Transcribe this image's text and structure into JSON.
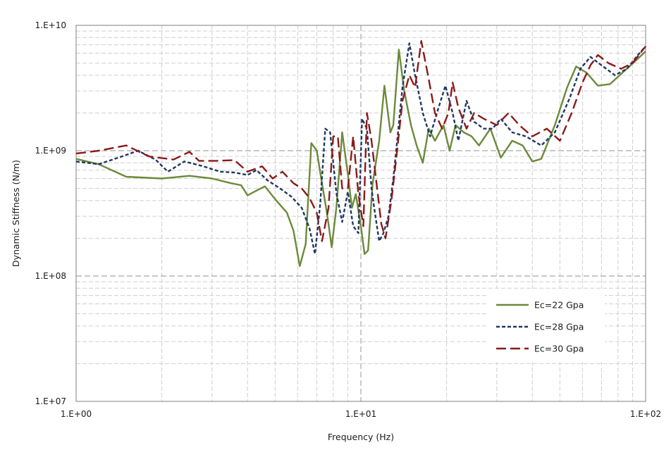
{
  "chart_data": {
    "type": "line",
    "xlabel": "Frequency (Hz)",
    "ylabel": "Dynamic Stiffness (N/m)",
    "x_scale": "log",
    "y_scale": "log",
    "xlim": [
      1,
      100
    ],
    "ylim": [
      10000000,
      10000000000
    ],
    "x_ticks": [
      {
        "value": 1,
        "label": "1.E+00"
      },
      {
        "value": 10,
        "label": "1.E+01"
      },
      {
        "value": 100,
        "label": "1.E+02"
      }
    ],
    "y_ticks": [
      {
        "value": 10000000,
        "label": "1.E+07"
      },
      {
        "value": 100000000,
        "label": "1.E+08"
      },
      {
        "value": 1000000000,
        "label": "1.E+09"
      },
      {
        "value": 10000000000,
        "label": "1.E+10"
      }
    ],
    "grid": true,
    "legend_position": "bottom-right",
    "series": [
      {
        "name": "Ec=22 Gpa",
        "color": "#6b8a3a",
        "dash": "solid",
        "points": [
          [
            1.0,
            860000000.0
          ],
          [
            1.2,
            780000000.0
          ],
          [
            1.5,
            620000000.0
          ],
          [
            2.0,
            600000000.0
          ],
          [
            2.5,
            630000000.0
          ],
          [
            3.0,
            600000000.0
          ],
          [
            3.5,
            550000000.0
          ],
          [
            3.8,
            530000000.0
          ],
          [
            4.0,
            440000000.0
          ],
          [
            4.3,
            480000000.0
          ],
          [
            4.6,
            520000000.0
          ],
          [
            5.0,
            410000000.0
          ],
          [
            5.5,
            320000000.0
          ],
          [
            5.8,
            230000000.0
          ],
          [
            6.1,
            120000000.0
          ],
          [
            6.4,
            180000000.0
          ],
          [
            6.7,
            1150000000.0
          ],
          [
            7.0,
            1000000000.0
          ],
          [
            7.3,
            550000000.0
          ],
          [
            7.6,
            320000000.0
          ],
          [
            7.9,
            170000000.0
          ],
          [
            8.2,
            350000000.0
          ],
          [
            8.6,
            1400000000.0
          ],
          [
            9.0,
            650000000.0
          ],
          [
            9.3,
            350000000.0
          ],
          [
            9.6,
            450000000.0
          ],
          [
            10.0,
            250000000.0
          ],
          [
            10.3,
            150000000.0
          ],
          [
            10.6,
            160000000.0
          ],
          [
            11.0,
            550000000.0
          ],
          [
            11.6,
            1200000000.0
          ],
          [
            12.1,
            3300000000.0
          ],
          [
            12.7,
            1400000000.0
          ],
          [
            13.0,
            1600000000.0
          ],
          [
            13.6,
            6400000000.0
          ],
          [
            14.2,
            3000000000.0
          ],
          [
            15.0,
            1600000000.0
          ],
          [
            15.7,
            1100000000.0
          ],
          [
            16.5,
            800000000.0
          ],
          [
            17.3,
            1500000000.0
          ],
          [
            18.2,
            1200000000.0
          ],
          [
            19.5,
            1600000000.0
          ],
          [
            20.5,
            1000000000.0
          ],
          [
            21.5,
            1600000000.0
          ],
          [
            23.0,
            1400000000.0
          ],
          [
            24.5,
            1300000000.0
          ],
          [
            26.0,
            1100000000.0
          ],
          [
            28.5,
            1500000000.0
          ],
          [
            31.0,
            880000000.0
          ],
          [
            34.0,
            1200000000.0
          ],
          [
            37.0,
            1100000000.0
          ],
          [
            40.0,
            820000000.0
          ],
          [
            43.0,
            860000000.0
          ],
          [
            48.0,
            1600000000.0
          ],
          [
            53.0,
            3200000000.0
          ],
          [
            57.0,
            4700000000.0
          ],
          [
            62.0,
            4200000000.0
          ],
          [
            68.0,
            3300000000.0
          ],
          [
            75.0,
            3400000000.0
          ],
          [
            83.0,
            4200000000.0
          ],
          [
            92.0,
            5200000000.0
          ],
          [
            100.0,
            6200000000.0
          ]
        ]
      },
      {
        "name": "Ec=28 Gpa",
        "color": "#1f3864",
        "dash": "dotted",
        "points": [
          [
            1.0,
            820000000.0
          ],
          [
            1.2,
            780000000.0
          ],
          [
            1.45,
            900000000.0
          ],
          [
            1.65,
            1000000000.0
          ],
          [
            1.9,
            850000000.0
          ],
          [
            2.1,
            680000000.0
          ],
          [
            2.4,
            820000000.0
          ],
          [
            2.8,
            750000000.0
          ],
          [
            3.2,
            680000000.0
          ],
          [
            3.6,
            670000000.0
          ],
          [
            4.0,
            640000000.0
          ],
          [
            4.3,
            700000000.0
          ],
          [
            4.7,
            580000000.0
          ],
          [
            5.2,
            500000000.0
          ],
          [
            5.7,
            430000000.0
          ],
          [
            6.2,
            350000000.0
          ],
          [
            6.6,
            240000000.0
          ],
          [
            6.9,
            150000000.0
          ],
          [
            7.2,
            380000000.0
          ],
          [
            7.5,
            1500000000.0
          ],
          [
            7.8,
            1400000000.0
          ],
          [
            8.2,
            460000000.0
          ],
          [
            8.6,
            270000000.0
          ],
          [
            9.0,
            470000000.0
          ],
          [
            9.4,
            250000000.0
          ],
          [
            9.8,
            220000000.0
          ],
          [
            10.1,
            1800000000.0
          ],
          [
            10.5,
            1500000000.0
          ],
          [
            10.9,
            500000000.0
          ],
          [
            11.2,
            320000000.0
          ],
          [
            11.6,
            190000000.0
          ],
          [
            12.0,
            220000000.0
          ],
          [
            12.5,
            300000000.0
          ],
          [
            13.0,
            600000000.0
          ],
          [
            13.5,
            1400000000.0
          ],
          [
            14.0,
            3200000000.0
          ],
          [
            14.8,
            7200000000.0
          ],
          [
            15.5,
            4000000000.0
          ],
          [
            16.5,
            2000000000.0
          ],
          [
            17.5,
            1300000000.0
          ],
          [
            18.5,
            2000000000.0
          ],
          [
            19.8,
            3300000000.0
          ],
          [
            21.0,
            2000000000.0
          ],
          [
            22.0,
            1200000000.0
          ],
          [
            23.5,
            2500000000.0
          ],
          [
            25.0,
            1700000000.0
          ],
          [
            27.0,
            1500000000.0
          ],
          [
            29.0,
            1500000000.0
          ],
          [
            31.0,
            1800000000.0
          ],
          [
            34.0,
            1400000000.0
          ],
          [
            38.0,
            1300000000.0
          ],
          [
            43.0,
            1100000000.0
          ],
          [
            48.0,
            1400000000.0
          ],
          [
            54.0,
            2600000000.0
          ],
          [
            59.0,
            4500000000.0
          ],
          [
            64.0,
            5600000000.0
          ],
          [
            70.0,
            4800000000.0
          ],
          [
            78.0,
            4000000000.0
          ],
          [
            86.0,
            4500000000.0
          ],
          [
            94.0,
            5800000000.0
          ],
          [
            100.0,
            6800000000.0
          ]
        ]
      },
      {
        "name": "Ec=30 Gpa",
        "color": "#8b1a1a",
        "dash": "dashed",
        "points": [
          [
            1.0,
            950000000.0
          ],
          [
            1.2,
            1000000000.0
          ],
          [
            1.5,
            1100000000.0
          ],
          [
            1.8,
            900000000.0
          ],
          [
            2.2,
            850000000.0
          ],
          [
            2.5,
            980000000.0
          ],
          [
            2.7,
            830000000.0
          ],
          [
            3.1,
            830000000.0
          ],
          [
            3.6,
            840000000.0
          ],
          [
            4.0,
            680000000.0
          ],
          [
            4.5,
            750000000.0
          ],
          [
            4.9,
            600000000.0
          ],
          [
            5.3,
            680000000.0
          ],
          [
            5.8,
            550000000.0
          ],
          [
            6.2,
            500000000.0
          ],
          [
            6.6,
            420000000.0
          ],
          [
            7.0,
            320000000.0
          ],
          [
            7.3,
            190000000.0
          ],
          [
            7.7,
            350000000.0
          ],
          [
            8.0,
            1300000000.0
          ],
          [
            8.3,
            1300000000.0
          ],
          [
            8.6,
            500000000.0
          ],
          [
            9.0,
            500000000.0
          ],
          [
            9.4,
            1300000000.0
          ],
          [
            9.8,
            450000000.0
          ],
          [
            10.2,
            250000000.0
          ],
          [
            10.5,
            2000000000.0
          ],
          [
            10.9,
            1200000000.0
          ],
          [
            11.3,
            600000000.0
          ],
          [
            11.8,
            260000000.0
          ],
          [
            12.2,
            200000000.0
          ],
          [
            12.8,
            400000000.0
          ],
          [
            13.4,
            1000000000.0
          ],
          [
            14.0,
            2500000000.0
          ],
          [
            14.8,
            4000000000.0
          ],
          [
            15.5,
            3200000000.0
          ],
          [
            16.3,
            7500000000.0
          ],
          [
            17.2,
            4000000000.0
          ],
          [
            18.2,
            2000000000.0
          ],
          [
            19.3,
            1500000000.0
          ],
          [
            20.3,
            2000000000.0
          ],
          [
            21.0,
            3500000000.0
          ],
          [
            22.0,
            2200000000.0
          ],
          [
            23.5,
            1500000000.0
          ],
          [
            25.0,
            2000000000.0
          ],
          [
            27.0,
            1800000000.0
          ],
          [
            30.0,
            1600000000.0
          ],
          [
            33.0,
            2000000000.0
          ],
          [
            36.0,
            1600000000.0
          ],
          [
            40.0,
            1300000000.0
          ],
          [
            45.0,
            1500000000.0
          ],
          [
            50.0,
            1200000000.0
          ],
          [
            55.0,
            2000000000.0
          ],
          [
            60.0,
            3500000000.0
          ],
          [
            64.0,
            4800000000.0
          ],
          [
            68.0,
            5800000000.0
          ],
          [
            74.0,
            5000000000.0
          ],
          [
            82.0,
            4500000000.0
          ],
          [
            90.0,
            5000000000.0
          ],
          [
            100.0,
            6800000000.0
          ]
        ]
      }
    ]
  }
}
